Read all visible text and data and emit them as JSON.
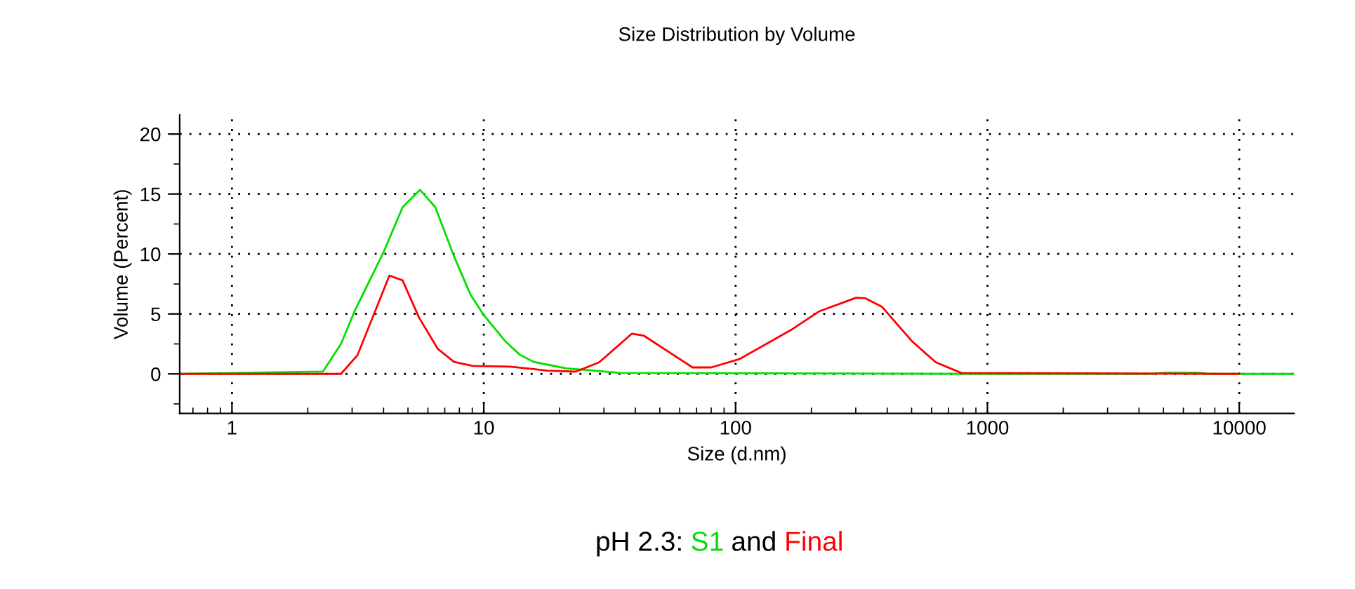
{
  "chart_data": {
    "type": "line",
    "title": "Size Distribution by Volume",
    "xlabel": "Size (d.nm)",
    "ylabel": "Volume (Percent)",
    "annotations": [
      "pH 2.3:",
      "and"
    ],
    "log": "x",
    "xlim": [
      0.62,
      16500
    ],
    "xticks": [
      1,
      10,
      100,
      1000,
      10000
    ],
    "ylim": [
      -3.3,
      21.6
    ],
    "yticks": [
      0,
      5,
      10,
      15,
      20
    ],
    "grid": true,
    "legend": false,
    "marker": "none",
    "line_style": "solid",
    "series": [
      {
        "name": "S1",
        "color": "#00e000",
        "x": [
          0.62,
          2.3,
          2.71,
          3.08,
          4.01,
          4.76,
          5.58,
          6.42,
          7.62,
          8.86,
          10,
          12.2,
          13.9,
          15.8,
          21.3,
          27.5,
          34.8,
          1000,
          4500,
          5000,
          7000,
          7500,
          16500
        ],
        "values": [
          0,
          0.2,
          2.5,
          5.3,
          10.2,
          13.9,
          15.35,
          13.9,
          9.8,
          6.6,
          4.9,
          2.7,
          1.6,
          1.0,
          0.46,
          0.27,
          0.08,
          0,
          0,
          0.1,
          0.1,
          0,
          0
        ]
      },
      {
        "name": "Final",
        "color": "#ff0000",
        "x": [
          0.62,
          2.71,
          3.15,
          4.22,
          4.76,
          5.53,
          6.56,
          7.62,
          9.05,
          12.7,
          15.8,
          17.9,
          23.2,
          28.7,
          38.7,
          43.1,
          67.5,
          80.1,
          103.5,
          165.6,
          214,
          301,
          328,
          381,
          503,
          624,
          788,
          10000
        ],
        "values": [
          0,
          0,
          1.56,
          8.2,
          7.8,
          4.7,
          2.1,
          1.0,
          0.66,
          0.6,
          0.4,
          0.27,
          0.19,
          0.96,
          3.35,
          3.2,
          0.54,
          0.54,
          1.23,
          3.65,
          5.2,
          6.35,
          6.3,
          5.6,
          2.7,
          0.96,
          0.08,
          0
        ]
      }
    ]
  }
}
